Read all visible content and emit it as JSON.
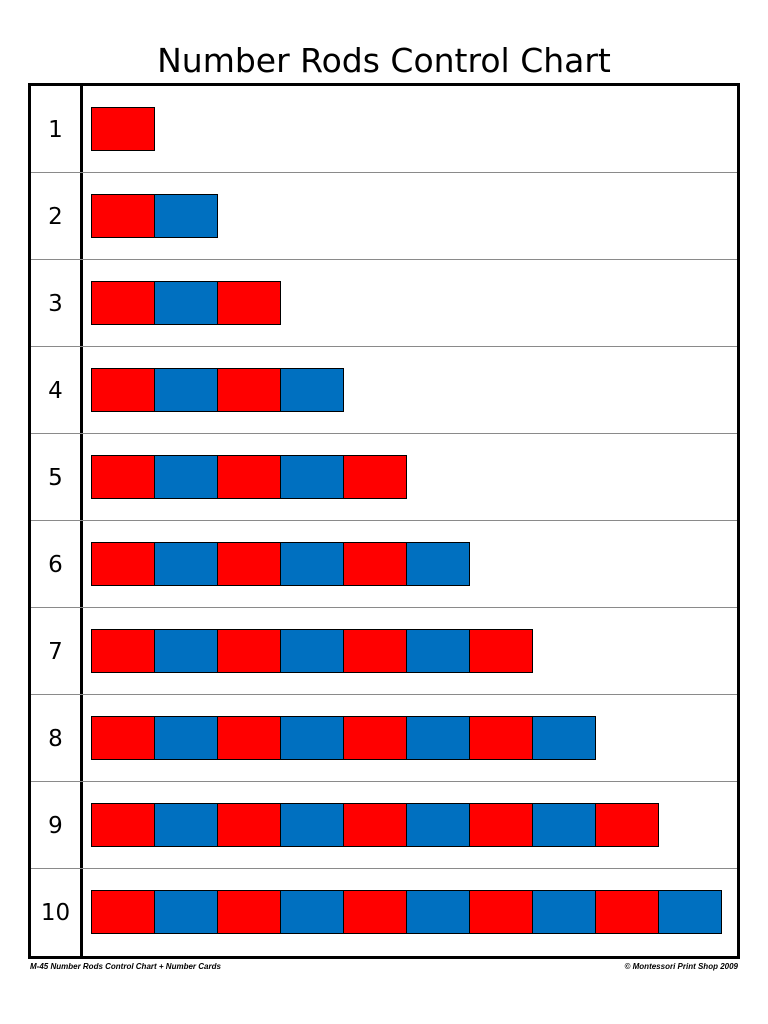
{
  "title": "Number Rods Control Chart",
  "colors": {
    "red": "#ff0000",
    "blue": "#0070c0",
    "border": "#000000",
    "divider": "#8a8a8a"
  },
  "rows": [
    {
      "label": "1",
      "length": 1
    },
    {
      "label": "2",
      "length": 2
    },
    {
      "label": "3",
      "length": 3
    },
    {
      "label": "4",
      "length": 4
    },
    {
      "label": "5",
      "length": 5
    },
    {
      "label": "6",
      "length": 6
    },
    {
      "label": "7",
      "length": 7
    },
    {
      "label": "8",
      "length": 8
    },
    {
      "label": "9",
      "length": 9
    },
    {
      "label": "10",
      "length": 10
    }
  ],
  "footer": {
    "left": "M-45 Number Rods Control Chart + Number Cards",
    "right": "© Montessori Print Shop 2009"
  }
}
